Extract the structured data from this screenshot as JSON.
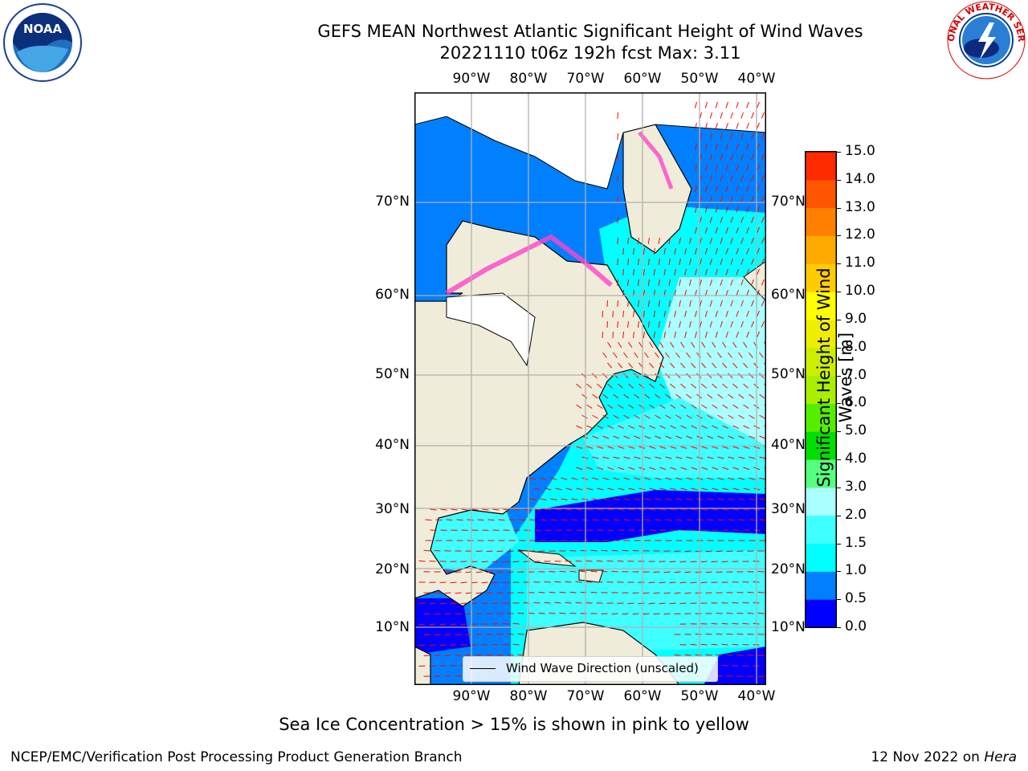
{
  "title": {
    "line1": "GEFS MEAN Northwest Atlantic Significant Height of Wind Waves",
    "line2": "20221110 t06z 192h fcst   Max: 3.11"
  },
  "map": {
    "lon_labels": [
      "90°W",
      "80°W",
      "70°W",
      "60°W",
      "50°W",
      "40°W"
    ],
    "lat_labels": [
      "70°N",
      "60°N",
      "50°N",
      "40°N",
      "30°N",
      "20°N",
      "10°N"
    ],
    "legend_label": "Wind Wave Direction (unscaled)",
    "colors": {
      "land": "#efedd9",
      "ice_land": "#ffffff",
      "arrow": "#ff0000",
      "grid": "#b0b0b0"
    }
  },
  "colorbar": {
    "title": "Significant Height of Wind Waves [m]",
    "levels": [
      "0.0",
      "0.5",
      "1.0",
      "1.5",
      "2.0",
      "3.0",
      "4.0",
      "5.0",
      "6.0",
      "7.0",
      "8.0",
      "9.0",
      "10.0",
      "11.0",
      "12.0",
      "13.0",
      "14.0",
      "15.0"
    ],
    "colors": [
      "#0000ff",
      "#0080ff",
      "#00ffff",
      "#40ffff",
      "#aaffff",
      "#55ff80",
      "#00e000",
      "#55ee00",
      "#aaee00",
      "#ccee00",
      "#eeee00",
      "#ffff00",
      "#ffcc00",
      "#ffaa00",
      "#ff8000",
      "#ff5500",
      "#ff2a00"
    ]
  },
  "footer": {
    "sea_ice_note": "Sea Ice Concentration > 15% is shown in pink to yellow",
    "credit": "NCEP/EMC/Verification Post Processing Product Generation Branch",
    "date": "12 Nov 2022 on",
    "machine": "Hera"
  },
  "logos": {
    "left": "NOAA",
    "right": "NATIONAL WEATHER SERVICE"
  }
}
